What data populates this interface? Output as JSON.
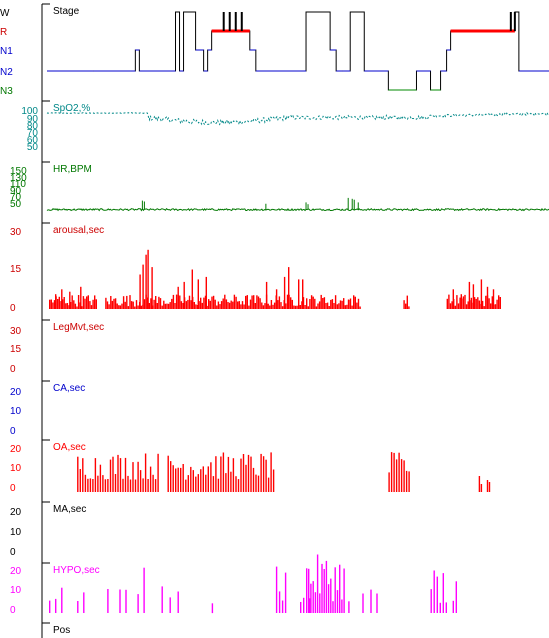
{
  "chart_data": {
    "type": "polysomnogram-hypnogram",
    "panels": [
      {
        "id": "stage",
        "title": "Stage",
        "title_color": "#000000",
        "kind": "hypnogram",
        "levels": [
          {
            "label": "W",
            "color": "#000000"
          },
          {
            "label": "R",
            "color": "#cc0000"
          },
          {
            "label": "N1",
            "color": "#0000cc"
          },
          {
            "label": "N2",
            "color": "#0000cc"
          },
          {
            "label": "N3",
            "color": "#007700"
          }
        ],
        "x_range": [
          0,
          500
        ],
        "segments": [
          [
            0,
            46,
            "N2"
          ],
          [
            46,
            88,
            "N2"
          ],
          [
            88,
            92,
            "N1"
          ],
          [
            92,
            128,
            "N2"
          ],
          [
            128,
            132,
            "W"
          ],
          [
            132,
            136,
            "N2"
          ],
          [
            136,
            140,
            "W"
          ],
          [
            140,
            148,
            "W"
          ],
          [
            148,
            156,
            "N1"
          ],
          [
            156,
            160,
            "N2"
          ],
          [
            160,
            164,
            "N1"
          ],
          [
            164,
            202,
            "R"
          ],
          [
            202,
            208,
            "N1"
          ],
          [
            208,
            258,
            "N2"
          ],
          [
            258,
            262,
            "W"
          ],
          [
            262,
            268,
            "W"
          ],
          [
            268,
            276,
            "W"
          ],
          [
            276,
            282,
            "W"
          ],
          [
            282,
            288,
            "N1"
          ],
          [
            288,
            294,
            "N2"
          ],
          [
            294,
            302,
            "N2"
          ],
          [
            302,
            306,
            "W"
          ],
          [
            306,
            312,
            "W"
          ],
          [
            312,
            316,
            "W"
          ],
          [
            316,
            340,
            "N2"
          ],
          [
            340,
            368,
            "N3"
          ],
          [
            368,
            382,
            "N2"
          ],
          [
            382,
            392,
            "N3"
          ],
          [
            392,
            398,
            "N2"
          ],
          [
            398,
            402,
            "N1"
          ],
          [
            402,
            466,
            "R"
          ],
          [
            466,
            470,
            "W"
          ],
          [
            470,
            500,
            "N2"
          ]
        ]
      },
      {
        "id": "spo2",
        "title": "SpO2,%",
        "title_color": "#008888",
        "kind": "line",
        "color": "#008888",
        "y_ticks": [
          "100",
          "90",
          "80",
          "70",
          "60",
          "50"
        ],
        "y_range": [
          50,
          100
        ]
      },
      {
        "id": "hr",
        "title": "HR,BPM",
        "title_color": "#007700",
        "kind": "line",
        "color": "#007700",
        "y_ticks": [
          "150",
          "130",
          "110",
          "90",
          "70",
          "50"
        ],
        "y_range": [
          50,
          150
        ]
      },
      {
        "id": "arousal",
        "title": "arousal,sec",
        "title_color": "#cc0000",
        "kind": "bars",
        "color": "#ff0000",
        "y_ticks": [
          "30",
          "15",
          "0"
        ],
        "y_range": [
          0,
          30
        ]
      },
      {
        "id": "legmvt",
        "title": "LegMvt,sec",
        "title_color": "#cc0000",
        "kind": "bars",
        "color": "#ff0000",
        "y_ticks": [
          "30",
          "15",
          "0"
        ],
        "y_range": [
          0,
          30
        ]
      },
      {
        "id": "ca",
        "title": "CA,sec",
        "title_color": "#0000cc",
        "kind": "bars",
        "color": "#0000ff",
        "y_ticks": [
          "20",
          "10",
          "0"
        ],
        "y_range": [
          0,
          20
        ]
      },
      {
        "id": "oa",
        "title": "OA,sec",
        "title_color": "#ff0000",
        "kind": "bars",
        "color": "#ff0000",
        "y_ticks": [
          "20",
          "10",
          "0"
        ],
        "y_range": [
          0,
          20
        ]
      },
      {
        "id": "ma",
        "title": "MA,sec",
        "title_color": "#000000",
        "kind": "bars",
        "color": "#000000",
        "y_ticks": [
          "20",
          "10",
          "0"
        ],
        "y_range": [
          0,
          20
        ]
      },
      {
        "id": "hypo",
        "title": "HYPO,sec",
        "title_color": "#ff00ff",
        "kind": "bars",
        "color": "#ff00ff",
        "y_ticks": [
          "20",
          "10",
          "0"
        ],
        "y_range": [
          0,
          20
        ]
      },
      {
        "id": "pos",
        "title": "Pos",
        "title_color": "#000000",
        "kind": "empty"
      }
    ]
  }
}
